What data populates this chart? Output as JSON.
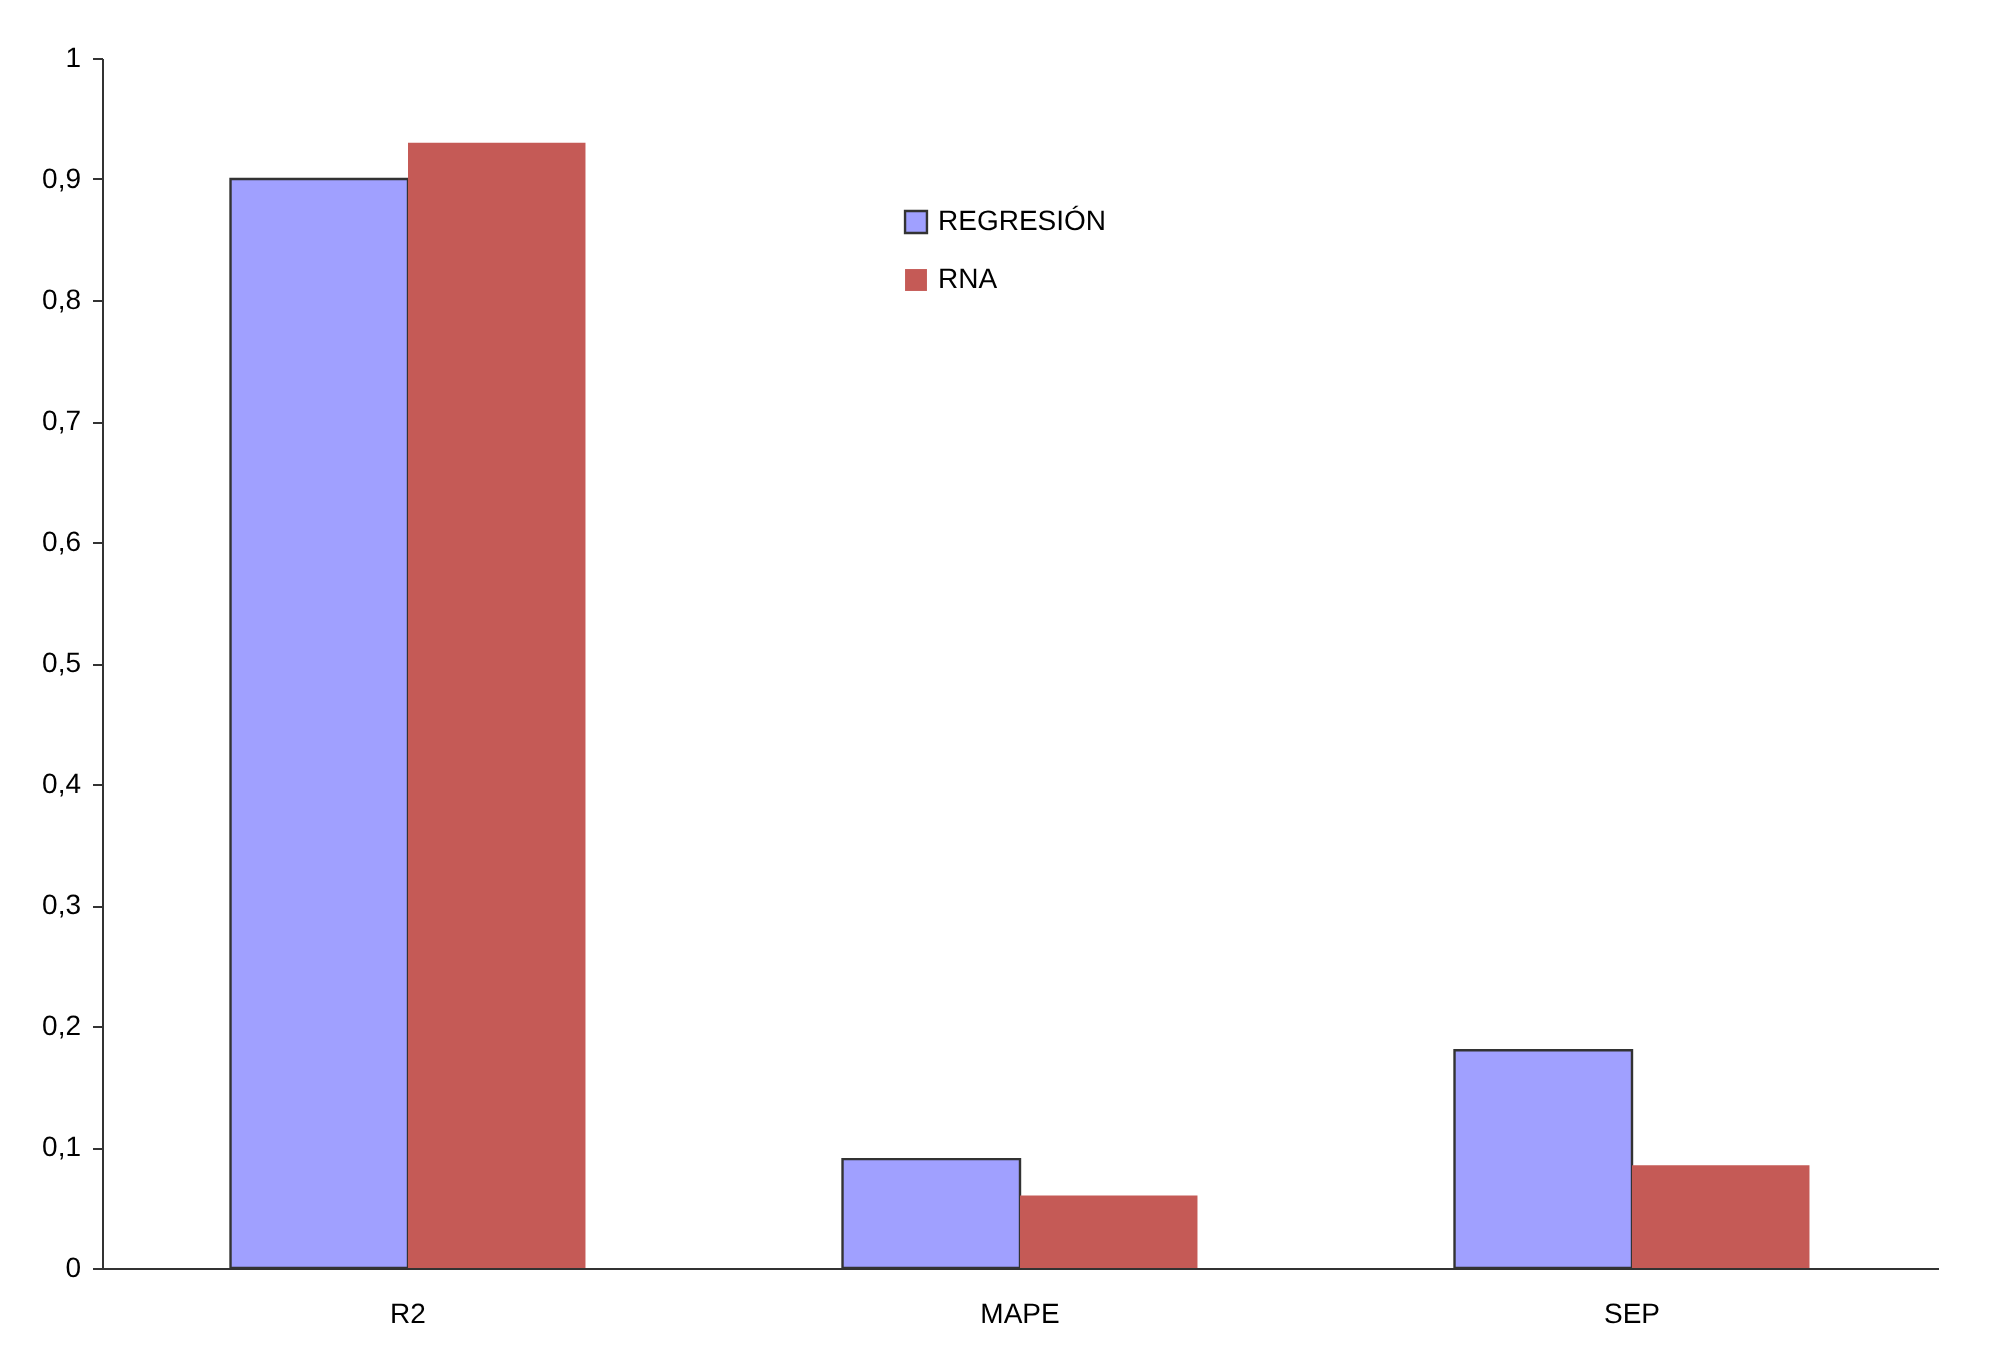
{
  "chart_data": {
    "type": "bar",
    "categories": [
      "R2",
      "MAPE",
      "SEP"
    ],
    "series": [
      {
        "name": "REGRESIÓN",
        "color": "#a0a0ff",
        "values": [
          0.9,
          0.09,
          0.18
        ]
      },
      {
        "name": "RNA",
        "color": "#c55a56",
        "values": [
          0.93,
          0.06,
          0.085
        ]
      }
    ],
    "ylim": [
      0,
      1
    ],
    "yticks": [
      0,
      {
        "value": 0.1,
        "label": "0,1"
      },
      {
        "value": 0.2,
        "label": "0,2"
      },
      {
        "value": 0.3,
        "label": "0,3"
      },
      {
        "value": 0.4,
        "label": "0,4"
      },
      {
        "value": 0.5,
        "label": "0,5"
      },
      {
        "value": 0.6,
        "label": "0,6"
      },
      {
        "value": 0.7,
        "label": "0,7"
      },
      {
        "value": 0.8,
        "label": "0,8"
      },
      {
        "value": 0.9,
        "label": "0,9"
      },
      1
    ],
    "grid": false,
    "legend": "top"
  }
}
